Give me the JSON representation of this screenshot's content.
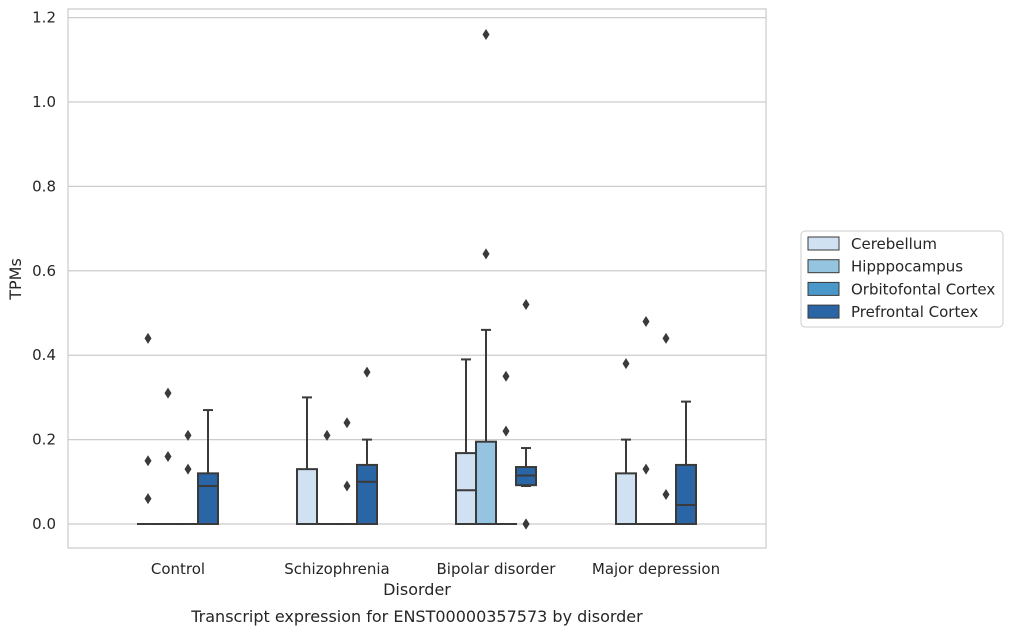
{
  "chart_data": {
    "type": "box",
    "title": "Transcript expression for ENST00000357573 by disorder",
    "xlabel": "Disorder",
    "ylabel": "TPMs",
    "ylim": [
      -0.056,
      1.22
    ],
    "yticks": [
      "0.0",
      "0.2",
      "0.4",
      "0.6",
      "0.8",
      "1.0",
      "1.2"
    ],
    "grid": "horizontal",
    "legend_position": "right",
    "categories": [
      "Control",
      "Schizophrenia",
      "Bipolar disorder",
      "Major depression"
    ],
    "series": [
      {
        "name": "Cerebellum",
        "color": "#d0e1f2",
        "boxes": [
          {
            "q1": 0,
            "median": 0,
            "q3": 0,
            "whislo": 0,
            "whishi": 0,
            "fliers": [
              0.44,
              0.15,
              0.06
            ]
          },
          {
            "q1": 0,
            "median": 0,
            "q3": 0.13,
            "whislo": 0,
            "whishi": 0.3,
            "fliers": []
          },
          {
            "q1": 0,
            "median": 0.08,
            "q3": 0.168,
            "whislo": 0,
            "whishi": 0.39,
            "fliers": []
          },
          {
            "q1": 0,
            "median": 0,
            "q3": 0.12,
            "whislo": 0,
            "whishi": 0.2,
            "fliers": [
              0.38
            ]
          }
        ]
      },
      {
        "name": "Hipppocampus",
        "color": "#94c4df",
        "boxes": [
          {
            "q1": 0,
            "median": 0,
            "q3": 0,
            "whislo": 0,
            "whishi": 0,
            "fliers": [
              0.31,
              0.16
            ]
          },
          {
            "q1": 0,
            "median": 0,
            "q3": 0,
            "whislo": 0,
            "whishi": 0,
            "fliers": [
              0.21
            ]
          },
          {
            "q1": 0,
            "median": 0,
            "q3": 0.195,
            "whislo": 0,
            "whishi": 0.46,
            "fliers": [
              1.16,
              0.64
            ]
          },
          {
            "q1": 0,
            "median": 0,
            "q3": 0,
            "whislo": 0,
            "whishi": 0,
            "fliers": [
              0.48,
              0.13
            ]
          }
        ]
      },
      {
        "name": "Orbitofontal Cortex",
        "color": "#4a98c9",
        "boxes": [
          {
            "q1": 0,
            "median": 0,
            "q3": 0,
            "whislo": 0,
            "whishi": 0,
            "fliers": [
              0.21,
              0.13
            ]
          },
          {
            "q1": 0,
            "median": 0,
            "q3": 0,
            "whislo": 0,
            "whishi": 0,
            "fliers": [
              0.24,
              0.09
            ]
          },
          {
            "q1": 0,
            "median": 0,
            "q3": 0,
            "whislo": 0,
            "whishi": 0,
            "fliers": [
              0.35,
              0.22
            ]
          },
          {
            "q1": 0,
            "median": 0,
            "q3": 0,
            "whislo": 0,
            "whishi": 0,
            "fliers": [
              0.44,
              0.07
            ]
          }
        ]
      },
      {
        "name": "Prefrontal Cortex",
        "color": "#2a66a6",
        "boxes": [
          {
            "q1": 0,
            "median": 0.09,
            "q3": 0.12,
            "whislo": 0,
            "whishi": 0.27,
            "fliers": []
          },
          {
            "q1": 0,
            "median": 0.1,
            "q3": 0.14,
            "whislo": 0,
            "whishi": 0.2,
            "fliers": [
              0.36
            ]
          },
          {
            "q1": 0.092,
            "median": 0.115,
            "q3": 0.135,
            "whislo": 0.09,
            "whishi": 0.18,
            "fliers": [
              0.52,
              0.0,
              0.0
            ]
          },
          {
            "q1": 0,
            "median": 0.045,
            "q3": 0.14,
            "whislo": 0,
            "whishi": 0.29,
            "fliers": []
          }
        ]
      }
    ]
  }
}
